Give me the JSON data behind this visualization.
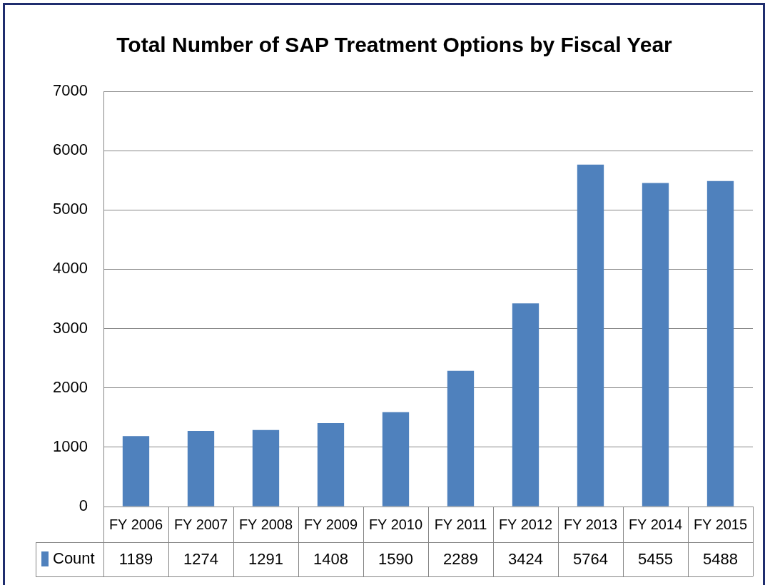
{
  "chart_data": {
    "type": "bar",
    "title": "Total Number of SAP Treatment Options by Fiscal Year",
    "categories": [
      "FY 2006",
      "FY 2007",
      "FY 2008",
      "FY 2009",
      "FY 2010",
      "FY 2011",
      "FY 2012",
      "FY 2013",
      "FY 2014",
      "FY 2015"
    ],
    "series": [
      {
        "name": "Count",
        "color": "#4f81bd",
        "values": [
          1189,
          1274,
          1291,
          1408,
          1590,
          2289,
          3424,
          5764,
          5455,
          5488
        ]
      }
    ],
    "ylim": [
      0,
      7000
    ],
    "yticks": [
      0,
      1000,
      2000,
      3000,
      4000,
      5000,
      6000,
      7000
    ],
    "grid": "y",
    "legend": "bottom left",
    "data_labels": true
  }
}
